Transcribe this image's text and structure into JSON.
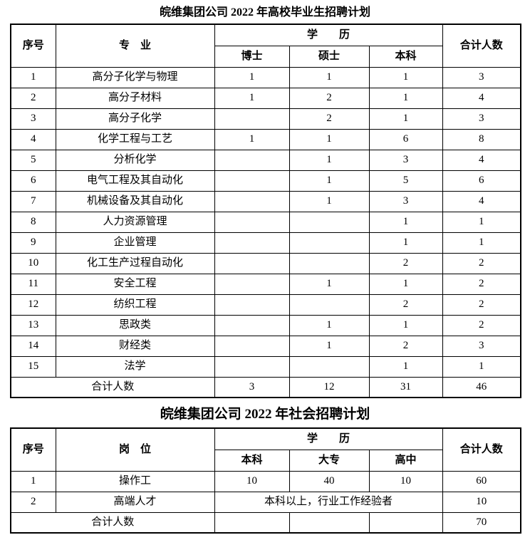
{
  "campus_table": {
    "title": "皖维集团公司 2022 年高校毕业生招聘计划",
    "headers": {
      "no": "序号",
      "major": "专　业",
      "education": "学　　历",
      "total": "合计人数",
      "sub": {
        "phd": "博士",
        "master": "硕士",
        "bachelor": "本科"
      }
    },
    "rows": [
      {
        "no": "1",
        "major": "高分子化学与物理",
        "phd": "1",
        "master": "1",
        "bachelor": "1",
        "total": "3"
      },
      {
        "no": "2",
        "major": "高分子材料",
        "phd": "1",
        "master": "2",
        "bachelor": "1",
        "total": "4"
      },
      {
        "no": "3",
        "major": "高分子化学",
        "phd": "",
        "master": "2",
        "bachelor": "1",
        "total": "3"
      },
      {
        "no": "4",
        "major": "化学工程与工艺",
        "phd": "1",
        "master": "1",
        "bachelor": "6",
        "total": "8"
      },
      {
        "no": "5",
        "major": "分析化学",
        "phd": "",
        "master": "1",
        "bachelor": "3",
        "total": "4"
      },
      {
        "no": "6",
        "major": "电气工程及其自动化",
        "phd": "",
        "master": "1",
        "bachelor": "5",
        "total": "6"
      },
      {
        "no": "7",
        "major": "机械设备及其自动化",
        "phd": "",
        "master": "1",
        "bachelor": "3",
        "total": "4"
      },
      {
        "no": "8",
        "major": "人力资源管理",
        "phd": "",
        "master": "",
        "bachelor": "1",
        "total": "1"
      },
      {
        "no": "9",
        "major": "企业管理",
        "phd": "",
        "master": "",
        "bachelor": "1",
        "total": "1"
      },
      {
        "no": "10",
        "major": "化工生产过程自动化",
        "phd": "",
        "master": "",
        "bachelor": "2",
        "total": "2"
      },
      {
        "no": "11",
        "major": "安全工程",
        "phd": "",
        "master": "1",
        "bachelor": "1",
        "total": "2"
      },
      {
        "no": "12",
        "major": "纺织工程",
        "phd": "",
        "master": "",
        "bachelor": "2",
        "total": "2"
      },
      {
        "no": "13",
        "major": "思政类",
        "phd": "",
        "master": "1",
        "bachelor": "1",
        "total": "2"
      },
      {
        "no": "14",
        "major": "财经类",
        "phd": "",
        "master": "1",
        "bachelor": "2",
        "total": "3"
      },
      {
        "no": "15",
        "major": "法学",
        "phd": "",
        "master": "",
        "bachelor": "1",
        "total": "1"
      }
    ],
    "total_row": {
      "label": "合计人数",
      "phd": "3",
      "master": "12",
      "bachelor": "31",
      "total": "46"
    }
  },
  "social_table": {
    "title": "皖维集团公司 2022 年社会招聘计划",
    "headers": {
      "no": "序号",
      "position": "岗　位",
      "education": "学　　历",
      "total": "合计人数",
      "sub": {
        "bachelor": "本科",
        "college": "大专",
        "highschool": "高中"
      }
    },
    "rows": [
      {
        "no": "1",
        "position": "操作工",
        "bachelor": "10",
        "college": "40",
        "highschool": "10",
        "total": "60"
      }
    ],
    "merged_row": {
      "no": "2",
      "position": "高端人才",
      "note": "本科以上，行业工作经验者",
      "total": "10"
    },
    "total_row": {
      "label": "合计人数",
      "bachelor": "",
      "college": "",
      "highschool": "",
      "total": "70"
    }
  }
}
